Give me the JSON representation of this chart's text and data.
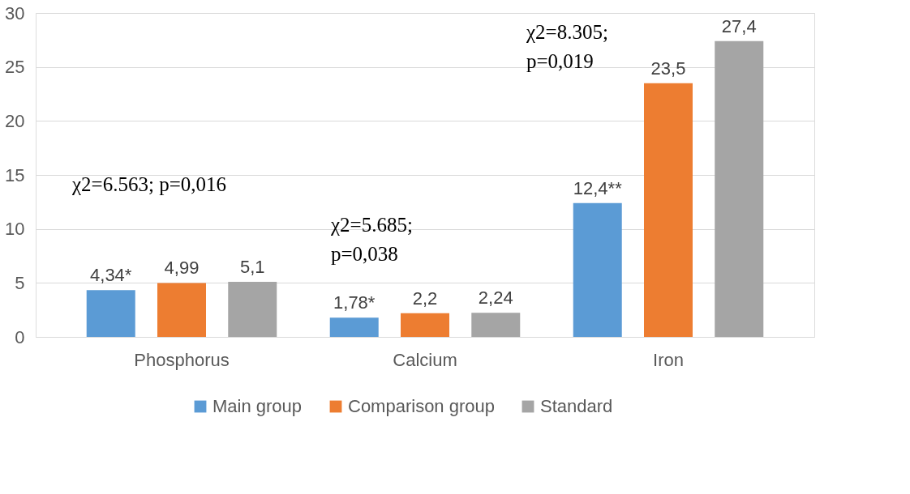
{
  "chart_data": {
    "type": "bar",
    "categories": [
      "Phosphorus",
      "Calcium",
      "Iron"
    ],
    "series": [
      {
        "name": "Main group",
        "color": "#5b9bd5",
        "values": [
          4.34,
          1.78,
          12.4
        ],
        "value_labels": [
          "4,34*",
          "1,78*",
          "12,4**"
        ]
      },
      {
        "name": "Comparison group",
        "color": "#ed7d31",
        "values": [
          4.99,
          2.2,
          23.5
        ],
        "value_labels": [
          "4,99",
          "2,2",
          "23,5"
        ]
      },
      {
        "name": "Standard",
        "color": "#a5a5a5",
        "values": [
          5.1,
          2.24,
          27.4
        ],
        "value_labels": [
          "5,1",
          "2,24",
          "27,4"
        ]
      }
    ],
    "ylim": [
      0,
      30
    ],
    "yticks": [
      0,
      5,
      10,
      15,
      20,
      25,
      30
    ],
    "grid": "y",
    "legend": "bottom",
    "annotations": [
      "χ2=6.563; p=0,016",
      "χ2=5.685;\np=0,038",
      "χ2=8.305;\np=0,019"
    ]
  }
}
